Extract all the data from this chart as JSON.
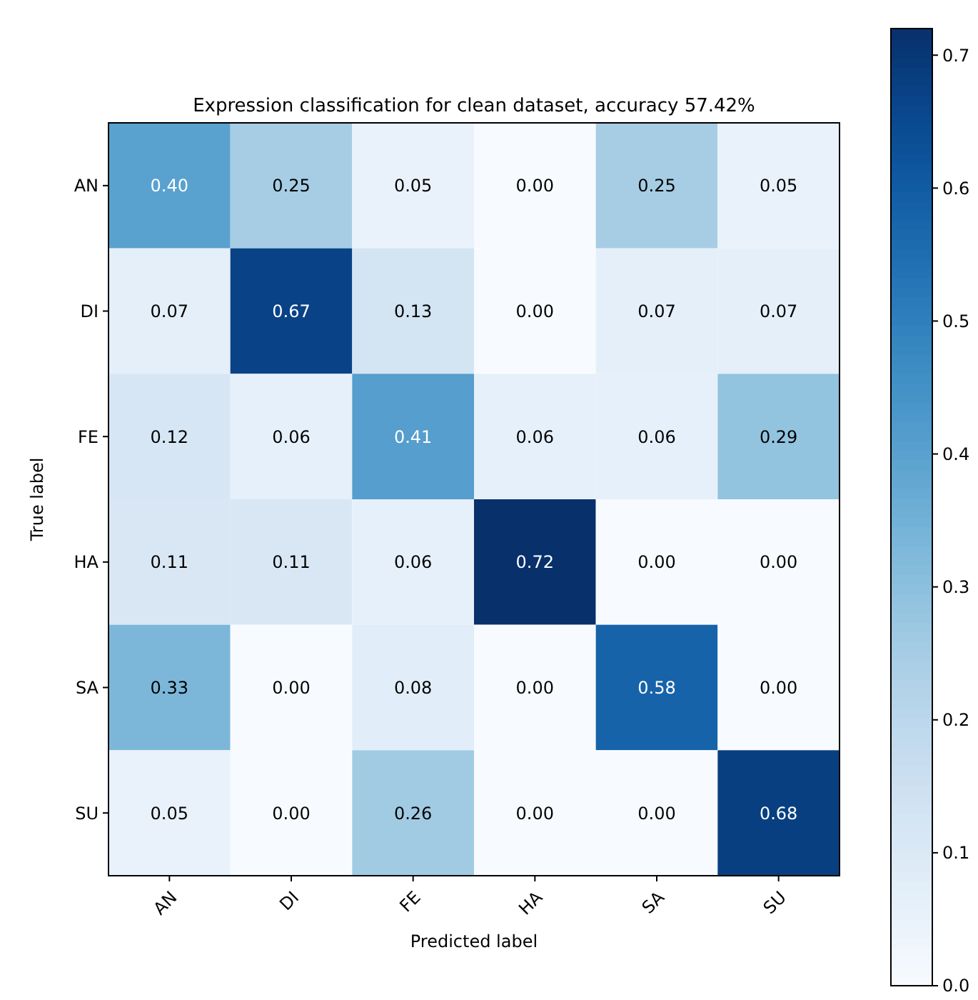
{
  "chart_data": {
    "type": "heatmap",
    "title": "Expression classification for clean dataset, accuracy 57.42%",
    "xlabel": "Predicted label",
    "ylabel": "True label",
    "categories": [
      "AN",
      "DI",
      "FE",
      "HA",
      "SA",
      "SU"
    ],
    "y_categories": [
      "AN",
      "DI",
      "FE",
      "HA",
      "SA",
      "SU"
    ],
    "cells": [
      [
        0.4,
        0.25,
        0.05,
        0.0,
        0.25,
        0.05
      ],
      [
        0.07,
        0.67,
        0.13,
        0.0,
        0.07,
        0.07
      ],
      [
        0.12,
        0.06,
        0.41,
        0.06,
        0.06,
        0.29
      ],
      [
        0.11,
        0.11,
        0.06,
        0.72,
        0.0,
        0.0
      ],
      [
        0.33,
        0.0,
        0.08,
        0.0,
        0.58,
        0.0
      ],
      [
        0.05,
        0.0,
        0.26,
        0.0,
        0.0,
        0.68
      ]
    ],
    "cell_labels": [
      [
        "0.40",
        "0.25",
        "0.05",
        "0.00",
        "0.25",
        "0.05"
      ],
      [
        "0.07",
        "0.67",
        "0.13",
        "0.00",
        "0.07",
        "0.07"
      ],
      [
        "0.12",
        "0.06",
        "0.41",
        "0.06",
        "0.06",
        "0.29"
      ],
      [
        "0.11",
        "0.11",
        "0.06",
        "0.72",
        "0.00",
        "0.00"
      ],
      [
        "0.33",
        "0.00",
        "0.08",
        "0.00",
        "0.58",
        "0.00"
      ],
      [
        "0.05",
        "0.00",
        "0.26",
        "0.00",
        "0.00",
        "0.68"
      ]
    ],
    "clim": [
      0,
      0.72
    ],
    "cticks": [
      {
        "value": 0,
        "label": "0.0"
      },
      {
        "value": 0.1,
        "label": "0.1"
      },
      {
        "value": 0.2,
        "label": "0.2"
      },
      {
        "value": 0.3,
        "label": "0.3"
      },
      {
        "value": 0.4,
        "label": "0.4"
      },
      {
        "value": 0.5,
        "label": "0.5"
      },
      {
        "value": 0.6,
        "label": "0.6"
      },
      {
        "value": 0.7,
        "label": "0.7"
      }
    ]
  }
}
